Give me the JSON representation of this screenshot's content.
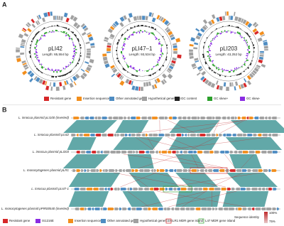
{
  "panel_a": {
    "label": "A",
    "plasmids": [
      {
        "name": "pLI42",
        "length": "Length: 65,554 bp"
      },
      {
        "name": "pLI47–1",
        "length": "Length: 93,534 bp"
      },
      {
        "name": "pLI203",
        "length": "Length: 43,252 bp"
      }
    ],
    "legend": [
      "Resistant gene",
      "Insertion sequence",
      "Other annotated gene",
      "Hypothetical gene/CDS",
      "GC content",
      "GC skew+",
      "GC skew-"
    ]
  },
  "panel_b": {
    "label": "B",
    "tracks": [
      "L. innocua plasmid pLI100 (inverted)",
      "L. innocua plasmid pLI42",
      "L. innocua plasmid pLI203",
      "L. monocytogenes plasmid pLR1",
      "L. innocua plasmid pLI47-1",
      "L. monocytogenes plasmid pPIR00540 (inverted)"
    ],
    "legend": [
      "Resistant gene",
      "IS1216E",
      "Insertion sequence",
      "Other annotated gene",
      "Hypothetical gene/CDS",
      "LR1 MDR gene island",
      "L47 MDR gene island"
    ],
    "identity": {
      "title": "Sequence identity",
      "max": "100%",
      "min": "75%"
    }
  }
}
